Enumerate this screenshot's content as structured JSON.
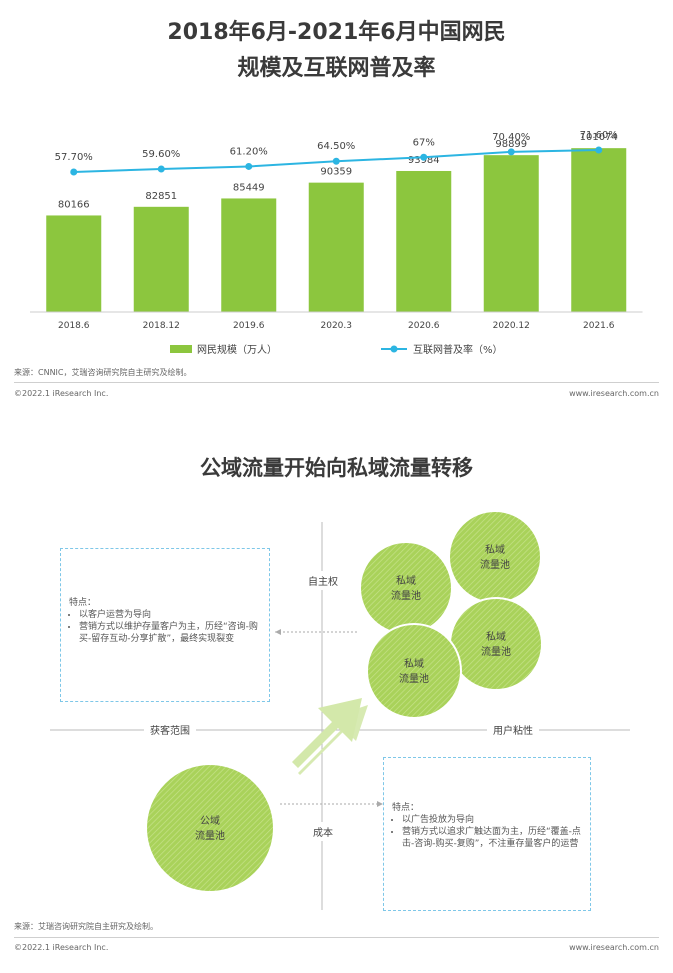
{
  "chart_title_line1": "2018年6月-2021年6月中国网民",
  "chart_title_line2": "规模及互联网普及率",
  "chart_data": {
    "type": "bar",
    "categories": [
      "2018.6",
      "2018.12",
      "2019.6",
      "2020.3",
      "2020.6",
      "2020.12",
      "2021.6"
    ],
    "series": [
      {
        "name": "网民规模（万人）",
        "type": "bar",
        "color": "#8cc63e",
        "values": [
          80166,
          82851,
          85449,
          90359,
          93984,
          98899,
          101074
        ]
      },
      {
        "name": "互联网普及率（%）",
        "type": "line",
        "color": "#2cb5e2",
        "values": [
          57.7,
          59.6,
          61.2,
          64.5,
          67,
          70.4,
          71.6
        ],
        "labels": [
          "57.70%",
          "59.60%",
          "61.20%",
          "64.50%",
          "67%",
          "70.40%",
          "71.60%"
        ]
      }
    ],
    "legend_position": "bottom",
    "grid": false
  },
  "source1": "来源：CNNIC，艾瑞咨询研究院自主研究及绘制。",
  "copyright1": "©2022.1 iResearch Inc.",
  "website1": "www.iresearch.com.cn",
  "diagram": {
    "title": "公域流量开始向私域流量转移",
    "axis_top": "自主权",
    "axis_left": "获客范围",
    "axis_right": "用户粘性",
    "axis_bottom": "成本",
    "private_circle_label": "私域\n流量池",
    "public_circle_label": "公域\n流量池",
    "box_left": {
      "heading": "特点：",
      "items": [
        "以客户运营为导向",
        "营销方式以维护存量客户为主，历经“咨询-购买-留存互动-分享扩散”，最终实现裂变"
      ]
    },
    "box_right": {
      "heading": "特点：",
      "items": [
        "以广告投放为导向",
        "营销方式以追求广触达面为主，历经“覆盖-点击-咨询-购买-复购”，不注重存量客户的运营"
      ]
    }
  },
  "source2": "来源：艾瑞咨询研究院自主研究及绘制。",
  "copyright2": "©2022.1 iResearch Inc.",
  "website2": "www.iresearch.com.cn",
  "colors": {
    "bar": "#8cc63e",
    "line": "#2cb5e2",
    "circle": "#a7d055",
    "arrow": "#d7eab2"
  }
}
